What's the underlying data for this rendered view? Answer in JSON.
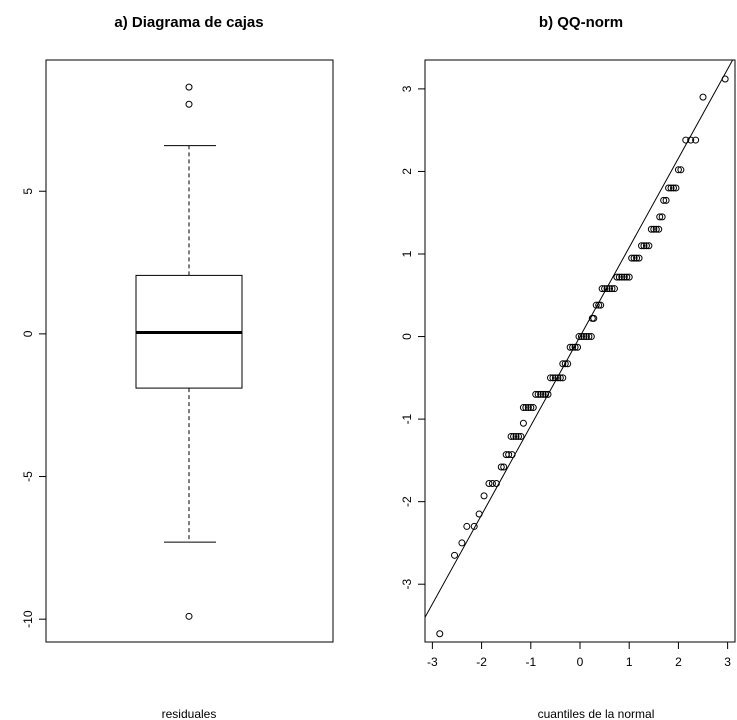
{
  "chart_data": [
    {
      "type": "boxplot",
      "title": "a) Diagrama de cajas",
      "xlabel": "residuales",
      "ylabel": "",
      "ylim": [
        -10.8,
        9.6
      ],
      "yticks": [
        -10,
        -5,
        0,
        5
      ],
      "ytick_labels": [
        "-10",
        "-5",
        "0",
        "5"
      ],
      "stats": {
        "whisker_low": -7.3,
        "q1": -1.9,
        "median": 0.05,
        "q3": 2.05,
        "whisker_high": 6.6
      },
      "outliers": [
        8.65,
        8.05,
        -9.9
      ],
      "grid": false
    },
    {
      "type": "scatter",
      "title": "b) QQ-norm",
      "xlabel": "cuantiles de la normal",
      "ylabel": "",
      "xlim": [
        -3.15,
        3.15
      ],
      "ylim": [
        -3.7,
        3.35
      ],
      "xticks": [
        -3,
        -2,
        -1,
        0,
        1,
        2,
        3
      ],
      "xtick_labels": [
        "-3",
        "-2",
        "-1",
        "0",
        "1",
        "2",
        "3"
      ],
      "yticks": [
        -3,
        -2,
        -1,
        0,
        1,
        2,
        3
      ],
      "ytick_labels": [
        "-3",
        "-2",
        "-1",
        "0",
        "1",
        "2",
        "3"
      ],
      "reference_line": {
        "intercept": 0.0,
        "slope": 1.08
      },
      "points": [
        [
          -2.85,
          -3.6
        ],
        [
          -2.55,
          -2.65
        ],
        [
          -2.4,
          -2.5
        ],
        [
          -2.3,
          -2.3
        ],
        [
          -2.15,
          -2.3
        ],
        [
          -2.05,
          -2.15
        ],
        [
          -1.95,
          -1.93
        ],
        [
          -1.85,
          -1.78
        ],
        [
          -1.78,
          -1.78
        ],
        [
          -1.7,
          -1.78
        ],
        [
          -1.6,
          -1.58
        ],
        [
          -1.55,
          -1.58
        ],
        [
          -1.5,
          -1.43
        ],
        [
          -1.45,
          -1.43
        ],
        [
          -1.38,
          -1.43
        ],
        [
          -1.4,
          -1.21
        ],
        [
          -1.35,
          -1.21
        ],
        [
          -1.3,
          -1.21
        ],
        [
          -1.25,
          -1.21
        ],
        [
          -1.2,
          -1.21
        ],
        [
          -1.15,
          -1.05
        ],
        [
          -1.15,
          -0.86
        ],
        [
          -1.1,
          -0.86
        ],
        [
          -1.05,
          -0.86
        ],
        [
          -1.0,
          -0.86
        ],
        [
          -0.95,
          -0.86
        ],
        [
          -0.9,
          -0.7
        ],
        [
          -0.85,
          -0.7
        ],
        [
          -0.8,
          -0.7
        ],
        [
          -0.75,
          -0.7
        ],
        [
          -0.7,
          -0.7
        ],
        [
          -0.65,
          -0.7
        ],
        [
          -0.6,
          -0.5
        ],
        [
          -0.55,
          -0.5
        ],
        [
          -0.5,
          -0.5
        ],
        [
          -0.45,
          -0.5
        ],
        [
          -0.4,
          -0.5
        ],
        [
          -0.35,
          -0.5
        ],
        [
          -0.35,
          -0.33
        ],
        [
          -0.3,
          -0.33
        ],
        [
          -0.25,
          -0.33
        ],
        [
          -0.2,
          -0.13
        ],
        [
          -0.15,
          -0.13
        ],
        [
          -0.1,
          -0.13
        ],
        [
          -0.05,
          -0.13
        ],
        [
          -0.02,
          0.0
        ],
        [
          0.03,
          0.0
        ],
        [
          0.08,
          0.0
        ],
        [
          0.13,
          0.0
        ],
        [
          0.18,
          0.0
        ],
        [
          0.23,
          0.0
        ],
        [
          0.25,
          0.22
        ],
        [
          0.28,
          0.22
        ],
        [
          0.33,
          0.38
        ],
        [
          0.38,
          0.38
        ],
        [
          0.42,
          0.38
        ],
        [
          0.45,
          0.58
        ],
        [
          0.5,
          0.58
        ],
        [
          0.55,
          0.58
        ],
        [
          0.6,
          0.58
        ],
        [
          0.65,
          0.58
        ],
        [
          0.7,
          0.58
        ],
        [
          0.75,
          0.72
        ],
        [
          0.8,
          0.72
        ],
        [
          0.85,
          0.72
        ],
        [
          0.9,
          0.72
        ],
        [
          0.95,
          0.72
        ],
        [
          1.0,
          0.72
        ],
        [
          1.05,
          0.95
        ],
        [
          1.1,
          0.95
        ],
        [
          1.15,
          0.95
        ],
        [
          1.2,
          0.95
        ],
        [
          1.25,
          1.1
        ],
        [
          1.3,
          1.1
        ],
        [
          1.35,
          1.1
        ],
        [
          1.4,
          1.1
        ],
        [
          1.45,
          1.3
        ],
        [
          1.5,
          1.3
        ],
        [
          1.55,
          1.3
        ],
        [
          1.6,
          1.3
        ],
        [
          1.62,
          1.45
        ],
        [
          1.67,
          1.45
        ],
        [
          1.7,
          1.65
        ],
        [
          1.75,
          1.65
        ],
        [
          1.8,
          1.8
        ],
        [
          1.85,
          1.8
        ],
        [
          1.9,
          1.8
        ],
        [
          1.95,
          1.8
        ],
        [
          2.0,
          2.02
        ],
        [
          2.05,
          2.02
        ],
        [
          2.15,
          2.38
        ],
        [
          2.25,
          2.38
        ],
        [
          2.35,
          2.38
        ],
        [
          2.5,
          2.9
        ],
        [
          2.95,
          3.12
        ]
      ],
      "grid": false
    }
  ]
}
